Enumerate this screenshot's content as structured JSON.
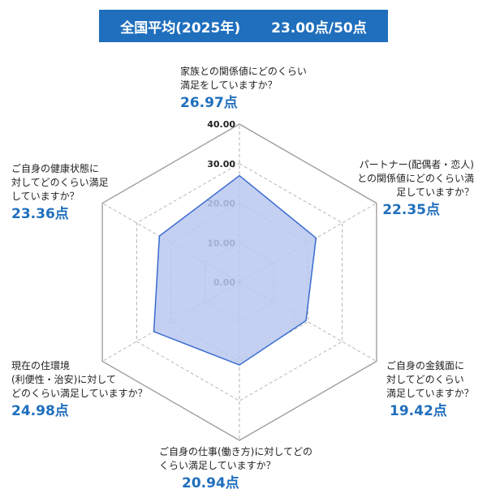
{
  "title": {
    "label": "全国平均(2025年)",
    "score": "23.00点/50点"
  },
  "chart_data": {
    "type": "radar",
    "max": 40,
    "ticks": [
      0,
      10,
      20,
      30,
      40
    ],
    "tick_labels": [
      "0.00",
      "10.00",
      "20.00",
      "30.00",
      "40.00"
    ],
    "axes": [
      {
        "question": "家族との関係値にどのくらい\n満足をしていますか？",
        "value": 26.97,
        "value_label": "26.97点"
      },
      {
        "question": "パートナー(配偶者・恋人)\nとの関係値にどのくらい満\n足していますか？",
        "value": 22.35,
        "value_label": "22.35点"
      },
      {
        "question": "ご自身の金銭面に\n対してどのくらい\n満足していますか？",
        "value": 19.42,
        "value_label": "19.42点"
      },
      {
        "question": "ご自身の仕事(働き方)に対してどの\nくらい満足していますか？",
        "value": 20.94,
        "value_label": "20.94点"
      },
      {
        "question": "現在の住環境\n(利便性・治安)に対して\nどのくらい満足していますか？",
        "value": 24.98,
        "value_label": "24.98点"
      },
      {
        "question": "ご自身の健康状態に\n対してどのくらい満足\nしていますか？",
        "value": 23.36,
        "value_label": "23.36点"
      }
    ],
    "colors": {
      "fill": "#b8c8ee",
      "stroke": "#3a6bd1",
      "outer_grid": "#999999",
      "inner_grid": "#b0b0b0",
      "title_bg": "#1f6fbd",
      "value_text": "#1f6fbd"
    }
  }
}
